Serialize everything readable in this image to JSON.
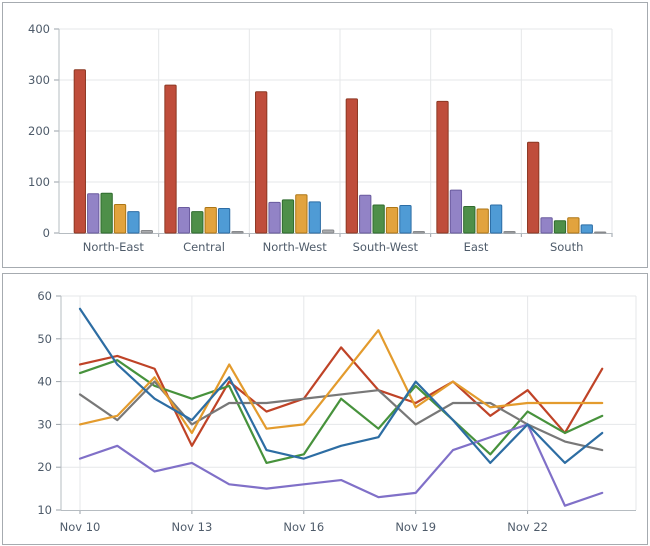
{
  "page": {
    "background": "#ffffff",
    "panel_border_color": "#a6abb0",
    "axis_line_color": "#b6bcc1",
    "grid_color": "#e5e7e9",
    "tick_color": "#9aa1a8",
    "label_color": "#4e5b6a",
    "label_font_size": 11.5
  },
  "chart_data": [
    {
      "type": "bar",
      "title": "",
      "xlabel": "",
      "ylabel": "",
      "ylim": [
        0,
        400
      ],
      "ytick_step": 100,
      "y_tick_labels": [
        "0",
        "100",
        "200",
        "300",
        "400"
      ],
      "grid": true,
      "legend_position": "none",
      "categories": [
        "North-East",
        "Central",
        "North-West",
        "South-West",
        "East",
        "South"
      ],
      "series": [
        {
          "name": "red",
          "color": "#bf4d3b",
          "stroke": "#8c3823",
          "values": [
            320,
            290,
            277,
            263,
            258,
            178
          ]
        },
        {
          "name": "purple",
          "color": "#9283c6",
          "stroke": "#6a5b9e",
          "values": [
            77,
            50,
            60,
            74,
            84,
            30
          ]
        },
        {
          "name": "green",
          "color": "#4e8f49",
          "stroke": "#2f6b2d",
          "values": [
            78,
            42,
            65,
            55,
            52,
            24
          ]
        },
        {
          "name": "orange",
          "color": "#e2a33e",
          "stroke": "#ad7615",
          "values": [
            56,
            50,
            75,
            50,
            47,
            30
          ]
        },
        {
          "name": "blue",
          "color": "#4f9bd5",
          "stroke": "#2c6da5",
          "values": [
            42,
            48,
            61,
            54,
            55,
            16
          ]
        },
        {
          "name": "gray",
          "color": "#a9abae",
          "stroke": "#87898c",
          "values": [
            5,
            3,
            6,
            3,
            3,
            2
          ]
        }
      ]
    },
    {
      "type": "line",
      "title": "",
      "xlabel": "",
      "ylabel": "",
      "ylim": [
        10,
        60
      ],
      "ytick_step": 10,
      "y_tick_labels": [
        "10",
        "20",
        "30",
        "40",
        "50",
        "60"
      ],
      "grid": true,
      "legend_position": "none",
      "n_points": 15,
      "x_start": "Nov 10",
      "x_end": "Nov 24",
      "x_tick_labels": [
        "Nov 10",
        "Nov 13",
        "Nov 16",
        "Nov 19",
        "Nov 22"
      ],
      "x_tick_indices": [
        0,
        3,
        6,
        9,
        12
      ],
      "series": [
        {
          "name": "red",
          "color": "#bf4327",
          "values": [
            44,
            46,
            43,
            25,
            40,
            33,
            36,
            48,
            38,
            35,
            40,
            32,
            38,
            28,
            43
          ]
        },
        {
          "name": "green",
          "color": "#47923c",
          "values": [
            42,
            45,
            39,
            36,
            39,
            21,
            23,
            36,
            29,
            39,
            31,
            23,
            33,
            28,
            32
          ]
        },
        {
          "name": "gray",
          "color": "#787878",
          "values": [
            37,
            31,
            40,
            30,
            35,
            35,
            36,
            37,
            38,
            30,
            35,
            35,
            30,
            26,
            24
          ]
        },
        {
          "name": "orange",
          "color": "#e39b2d",
          "values": [
            30,
            32,
            41,
            28,
            44,
            29,
            30,
            41,
            52,
            34,
            40,
            34,
            35,
            35,
            35
          ]
        },
        {
          "name": "purple",
          "color": "#8070c8",
          "values": [
            22,
            25,
            19,
            21,
            16,
            15,
            16,
            17,
            13,
            14,
            24,
            27,
            30,
            11,
            14
          ]
        },
        {
          "name": "blue",
          "color": "#2d6da3",
          "values": [
            57,
            44,
            36,
            31,
            41,
            24,
            22,
            25,
            27,
            40,
            31,
            21,
            30,
            21,
            28
          ]
        }
      ]
    }
  ]
}
